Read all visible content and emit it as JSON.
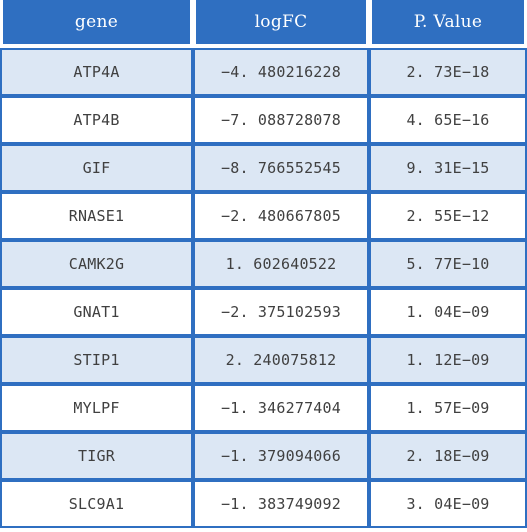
{
  "table": {
    "headers": [
      "gene",
      "logFC",
      "P. Value"
    ],
    "rows": [
      [
        "ATP4A",
        "−4. 480216228",
        "2. 73E−18"
      ],
      [
        "ATP4B",
        "−7. 088728078",
        "4. 65E−16"
      ],
      [
        "GIF",
        "−8. 766552545",
        "9. 31E−15"
      ],
      [
        "RNASE1",
        "−2. 480667805",
        "2. 55E−12"
      ],
      [
        "CAMK2G",
        "1. 602640522",
        "5. 77E−10"
      ],
      [
        "GNAT1",
        "−2. 375102593",
        "1. 04E−09"
      ],
      [
        "STIP1",
        "2. 240075812",
        "1. 12E−09"
      ],
      [
        "MYLPF",
        "−1. 346277404",
        "1. 57E−09"
      ],
      [
        "TIGR",
        "−1. 379094066",
        "2. 18E−09"
      ],
      [
        "SLC9A1",
        "−1. 383749092",
        "3. 04E−09"
      ]
    ]
  },
  "colors": {
    "header_bg": "#2f6fc1",
    "header_text": "#ffffff",
    "row_alt_bg": "#dce7f4",
    "border": "#2f6fc1",
    "cell_text": "#404040"
  }
}
